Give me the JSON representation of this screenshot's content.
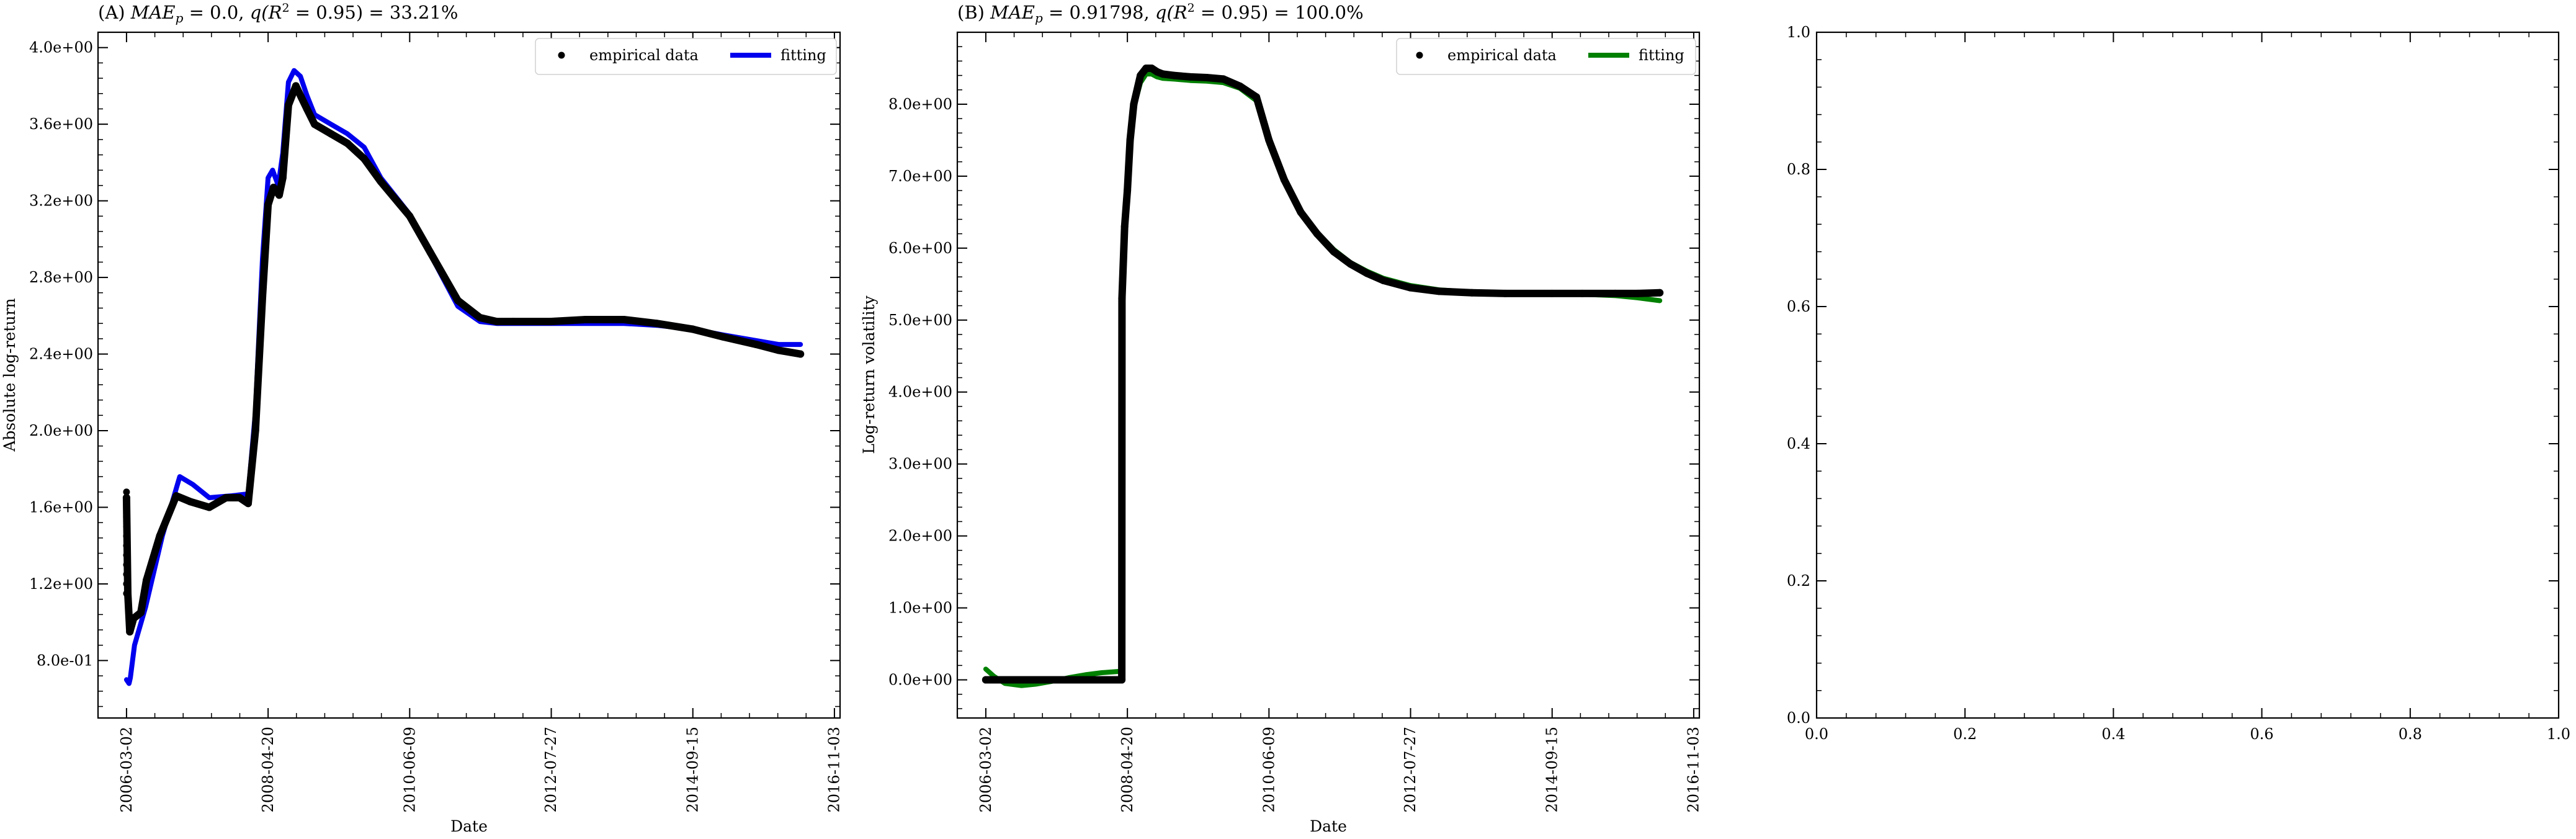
{
  "chart_data": [
    {
      "type": "line",
      "title": "(A) MAE_p = 0.0, q(R² = 0.95) = 33.21%",
      "title_parts": {
        "prefix": "(A) ",
        "mae_label": "MAE",
        "mae_sub": "p",
        "mae_value": " = 0.0, ",
        "q_text": "q(R",
        "q_sup": "2",
        "q_rest": " = 0.95) = 33.21%"
      },
      "xlabel": "Date",
      "ylabel": "Absolute log-return",
      "xticks": [
        "2006-03-02",
        "2008-04-20",
        "2010-06-09",
        "2012-07-27",
        "2014-09-15",
        "2016-11-03"
      ],
      "yticks": [
        "8.0e-01",
        "1.2e+00",
        "1.6e+00",
        "2.0e+00",
        "2.4e+00",
        "2.8e+00",
        "3.2e+00",
        "3.6e+00",
        "4.0e+00"
      ],
      "ytick_values": [
        0.8,
        1.2,
        1.6,
        2.0,
        2.4,
        2.8,
        3.2,
        3.6,
        4.0
      ],
      "xlim": [
        "2005-09-26",
        "2016-12-05"
      ],
      "ylim": [
        0.5,
        4.08
      ],
      "legend_position": "top-right",
      "series": [
        {
          "name": "empirical data",
          "style": "points",
          "color": "#000000",
          "x": [
            "2006-03-02",
            "2006-03-09",
            "2006-03-20",
            "2006-04-10",
            "2006-05-20",
            "2006-06-20",
            "2006-09-01",
            "2006-12-01",
            "2007-02-15",
            "2007-06-01",
            "2007-09-01",
            "2007-11-15",
            "2008-01-01",
            "2008-02-10",
            "2008-03-20",
            "2008-04-20",
            "2008-05-20",
            "2008-06-20",
            "2008-07-10",
            "2008-08-10",
            "2008-09-20",
            "2008-10-20",
            "2008-11-20",
            "2009-01-01",
            "2009-04-01",
            "2009-07-01",
            "2009-10-01",
            "2010-01-01",
            "2010-06-09",
            "2010-10-01",
            "2011-03-01",
            "2011-07-01",
            "2011-10-01",
            "2012-01-01",
            "2012-07-27",
            "2013-02-01",
            "2013-09-01",
            "2014-03-01",
            "2014-09-15",
            "2015-03-01",
            "2015-09-01",
            "2016-01-01",
            "2016-05-01"
          ],
          "y": [
            1.65,
            1.15,
            0.95,
            1.02,
            1.05,
            1.22,
            1.45,
            1.66,
            1.63,
            1.6,
            1.65,
            1.65,
            1.62,
            2.0,
            2.7,
            3.18,
            3.27,
            3.23,
            3.32,
            3.7,
            3.8,
            3.74,
            3.68,
            3.6,
            3.55,
            3.5,
            3.42,
            3.3,
            3.12,
            2.93,
            2.68,
            2.59,
            2.57,
            2.57,
            2.57,
            2.58,
            2.58,
            2.56,
            2.53,
            2.49,
            2.45,
            2.42,
            2.4
          ]
        },
        {
          "name": "fitting",
          "style": "line",
          "color": "#0000ee",
          "x": [
            "2006-03-02",
            "2006-03-16",
            "2006-03-23",
            "2006-04-15",
            "2006-06-15",
            "2006-09-15",
            "2006-12-20",
            "2007-03-01",
            "2007-06-01",
            "2007-10-01",
            "2008-01-01",
            "2008-02-10",
            "2008-03-20",
            "2008-04-20",
            "2008-05-15",
            "2008-06-15",
            "2008-07-10",
            "2008-08-10",
            "2008-09-10",
            "2008-10-15",
            "2008-11-20",
            "2009-01-01",
            "2009-04-01",
            "2009-07-01",
            "2009-10-01",
            "2010-01-01",
            "2010-06-09",
            "2010-10-01",
            "2011-03-01",
            "2011-07-01",
            "2011-10-01",
            "2012-01-01",
            "2012-07-27",
            "2013-02-01",
            "2013-09-01",
            "2014-03-01",
            "2014-09-15",
            "2015-03-01",
            "2015-09-01",
            "2016-01-01",
            "2016-05-01"
          ],
          "y": [
            0.7,
            0.68,
            0.71,
            0.88,
            1.08,
            1.45,
            1.76,
            1.72,
            1.65,
            1.66,
            1.67,
            2.1,
            2.9,
            3.32,
            3.36,
            3.28,
            3.45,
            3.82,
            3.88,
            3.85,
            3.75,
            3.65,
            3.6,
            3.55,
            3.48,
            3.32,
            3.13,
            2.92,
            2.65,
            2.57,
            2.56,
            2.56,
            2.56,
            2.56,
            2.56,
            2.55,
            2.53,
            2.5,
            2.47,
            2.45,
            2.45
          ]
        }
      ]
    },
    {
      "type": "line",
      "title": "(B) MAE_p = 0.91798, q(R² = 0.95) = 100.0%",
      "title_parts": {
        "prefix": "(B) ",
        "mae_label": "MAE",
        "mae_sub": "p",
        "mae_value": " = 0.91798, ",
        "q_text": "q(R",
        "q_sup": "2",
        "q_rest": " = 0.95) = 100.0%"
      },
      "xlabel": "Date",
      "ylabel": "Log-return volatility",
      "xticks": [
        "2006-03-02",
        "2008-04-20",
        "2010-06-09",
        "2012-07-27",
        "2014-09-15",
        "2016-11-03"
      ],
      "yticks": [
        "0.0e+00",
        "1.0e+00",
        "2.0e+00",
        "3.0e+00",
        "4.0e+00",
        "5.0e+00",
        "6.0e+00",
        "7.0e+00",
        "8.0e+00"
      ],
      "ytick_values": [
        0,
        1,
        2,
        3,
        4,
        5,
        6,
        7,
        8
      ],
      "xlim": [
        "2005-09-26",
        "2016-12-05"
      ],
      "ylim": [
        -0.53,
        9.0
      ],
      "legend_position": "top-right",
      "series": [
        {
          "name": "empirical data",
          "style": "points",
          "color": "#000000",
          "x": [
            "2006-03-02",
            "2006-06-01",
            "2006-09-01",
            "2006-12-01",
            "2007-03-01",
            "2007-06-01",
            "2007-09-01",
            "2007-12-01",
            "2008-02-01",
            "2008-03-20",
            "2008-03-21",
            "2008-04-05",
            "2008-04-20",
            "2008-05-05",
            "2008-05-25",
            "2008-07-01",
            "2008-08-01",
            "2008-09-01",
            "2008-10-01",
            "2008-11-01",
            "2009-01-01",
            "2009-04-01",
            "2009-07-01",
            "2009-10-01",
            "2010-01-01",
            "2010-04-01",
            "2010-06-09",
            "2010-09-01",
            "2010-12-01",
            "2011-03-01",
            "2011-06-01",
            "2011-09-01",
            "2011-12-01",
            "2012-03-01",
            "2012-07-27",
            "2013-01-01",
            "2013-07-01",
            "2014-01-01",
            "2014-09-15",
            "2015-03-01",
            "2015-09-01",
            "2016-01-01",
            "2016-05-01"
          ],
          "y": [
            0,
            0,
            0,
            0,
            0,
            0,
            0,
            0,
            0,
            0,
            5.3,
            6.3,
            6.8,
            7.5,
            8.0,
            8.4,
            8.5,
            8.5,
            8.45,
            8.42,
            8.4,
            8.38,
            8.37,
            8.35,
            8.25,
            8.1,
            7.5,
            6.95,
            6.5,
            6.2,
            5.95,
            5.78,
            5.65,
            5.55,
            5.45,
            5.4,
            5.38,
            5.37,
            5.37,
            5.37,
            5.37,
            5.37,
            5.38
          ]
        },
        {
          "name": "fitting",
          "style": "line",
          "color": "#008000",
          "x": [
            "2006-03-02",
            "2006-04-15",
            "2006-06-15",
            "2006-09-15",
            "2006-12-01",
            "2007-03-01",
            "2007-06-01",
            "2007-09-01",
            "2007-12-01",
            "2008-03-19",
            "2008-03-20",
            "2008-04-05",
            "2008-04-20",
            "2008-05-05",
            "2008-05-25",
            "2008-07-01",
            "2008-08-01",
            "2008-09-01",
            "2008-10-01",
            "2008-11-01",
            "2009-01-01",
            "2009-04-01",
            "2009-07-01",
            "2009-10-01",
            "2010-01-01",
            "2010-04-01",
            "2010-06-09",
            "2010-09-01",
            "2010-12-01",
            "2011-03-01",
            "2011-06-01",
            "2011-09-01",
            "2011-12-01",
            "2012-03-01",
            "2012-07-27",
            "2013-01-01",
            "2013-07-01",
            "2014-01-01",
            "2014-09-15",
            "2015-03-01",
            "2015-09-01",
            "2016-01-01",
            "2016-05-01"
          ],
          "y": [
            0.15,
            0.05,
            -0.05,
            -0.08,
            -0.06,
            -0.02,
            0.03,
            0.07,
            0.1,
            0.12,
            5.35,
            6.35,
            6.85,
            7.45,
            7.95,
            8.3,
            8.42,
            8.42,
            8.38,
            8.36,
            8.35,
            8.33,
            8.32,
            8.3,
            8.22,
            8.05,
            7.45,
            6.92,
            6.5,
            6.22,
            5.98,
            5.8,
            5.68,
            5.58,
            5.48,
            5.42,
            5.39,
            5.38,
            5.37,
            5.36,
            5.34,
            5.31,
            5.27
          ]
        }
      ]
    },
    {
      "type": "line",
      "title": "",
      "xticks": [
        "0.0",
        "0.2",
        "0.4",
        "0.6",
        "0.8",
        "1.0"
      ],
      "yticks": [
        "0.0",
        "0.2",
        "0.4",
        "0.6",
        "0.8",
        "1.0"
      ],
      "xlim": [
        0,
        1
      ],
      "ylim": [
        0,
        1
      ],
      "series": []
    }
  ]
}
